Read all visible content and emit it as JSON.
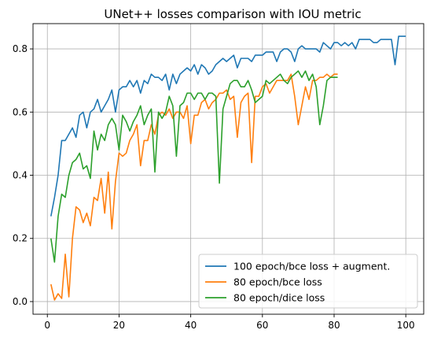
{
  "chart_data": {
    "type": "line",
    "title": "UNet++ losses comparison with IOU metric",
    "xlabel": "",
    "ylabel": "",
    "xlim": [
      -4,
      105
    ],
    "ylim": [
      -0.04,
      0.88
    ],
    "xticks": [
      0,
      20,
      40,
      60,
      80,
      100
    ],
    "yticks": [
      0.0,
      0.2,
      0.4,
      0.6,
      0.8
    ],
    "xtick_labels": [
      "0",
      "20",
      "40",
      "60",
      "80",
      "100"
    ],
    "ytick_labels": [
      "0.0",
      "0.2",
      "0.4",
      "0.6",
      "0.8"
    ],
    "grid": true,
    "legend_position": "lower right",
    "series": [
      {
        "name": "100 epoch/bce loss + augment.",
        "color": "#1f77b4",
        "x": [
          1,
          2,
          3,
          4,
          5,
          6,
          7,
          8,
          9,
          10,
          11,
          12,
          13,
          14,
          15,
          16,
          17,
          18,
          19,
          20,
          21,
          22,
          23,
          24,
          25,
          26,
          27,
          28,
          29,
          30,
          31,
          32,
          33,
          34,
          35,
          36,
          37,
          38,
          39,
          40,
          41,
          42,
          43,
          44,
          45,
          46,
          47,
          48,
          49,
          50,
          51,
          52,
          53,
          54,
          55,
          56,
          57,
          58,
          59,
          60,
          61,
          62,
          63,
          64,
          65,
          66,
          67,
          68,
          69,
          70,
          71,
          72,
          73,
          74,
          75,
          76,
          77,
          78,
          79,
          80,
          81,
          82,
          83,
          84,
          85,
          86,
          87,
          88,
          89,
          90,
          91,
          92,
          93,
          94,
          95,
          96,
          97,
          98,
          99,
          100
        ],
        "values": [
          0.27,
          0.33,
          0.4,
          0.51,
          0.51,
          0.53,
          0.55,
          0.52,
          0.59,
          0.6,
          0.55,
          0.6,
          0.61,
          0.64,
          0.6,
          0.62,
          0.64,
          0.67,
          0.6,
          0.67,
          0.68,
          0.68,
          0.7,
          0.68,
          0.7,
          0.66,
          0.7,
          0.69,
          0.72,
          0.71,
          0.71,
          0.7,
          0.72,
          0.67,
          0.72,
          0.69,
          0.72,
          0.73,
          0.74,
          0.73,
          0.75,
          0.72,
          0.75,
          0.74,
          0.72,
          0.73,
          0.75,
          0.76,
          0.77,
          0.76,
          0.77,
          0.78,
          0.74,
          0.77,
          0.77,
          0.77,
          0.76,
          0.78,
          0.78,
          0.78,
          0.79,
          0.79,
          0.79,
          0.76,
          0.79,
          0.8,
          0.8,
          0.79,
          0.76,
          0.8,
          0.81,
          0.8,
          0.8,
          0.8,
          0.8,
          0.79,
          0.82,
          0.81,
          0.8,
          0.82,
          0.82,
          0.81,
          0.82,
          0.81,
          0.82,
          0.8,
          0.83,
          0.83,
          0.83,
          0.83,
          0.82,
          0.82,
          0.83,
          0.83,
          0.83,
          0.83,
          0.75,
          0.84,
          0.84,
          0.84
        ]
      },
      {
        "name": "80 epoch/bce loss",
        "color": "#ff7f0e",
        "x": [
          1,
          2,
          3,
          4,
          5,
          6,
          7,
          8,
          9,
          10,
          11,
          12,
          13,
          14,
          15,
          16,
          17,
          18,
          19,
          20,
          21,
          22,
          23,
          24,
          25,
          26,
          27,
          28,
          29,
          30,
          31,
          32,
          33,
          34,
          35,
          36,
          37,
          38,
          39,
          40,
          41,
          42,
          43,
          44,
          45,
          46,
          47,
          48,
          49,
          50,
          51,
          52,
          53,
          54,
          55,
          56,
          57,
          58,
          59,
          60,
          61,
          62,
          63,
          64,
          65,
          66,
          67,
          68,
          69,
          70,
          71,
          72,
          73,
          74,
          75,
          76,
          77,
          78,
          79,
          80,
          81
        ],
        "values": [
          0.055,
          0.005,
          0.025,
          0.01,
          0.15,
          0.015,
          0.2,
          0.3,
          0.29,
          0.25,
          0.28,
          0.24,
          0.33,
          0.32,
          0.39,
          0.28,
          0.41,
          0.23,
          0.38,
          0.47,
          0.46,
          0.47,
          0.51,
          0.53,
          0.56,
          0.43,
          0.51,
          0.51,
          0.56,
          0.53,
          0.59,
          0.6,
          0.59,
          0.61,
          0.58,
          0.6,
          0.6,
          0.58,
          0.62,
          0.5,
          0.59,
          0.59,
          0.63,
          0.64,
          0.61,
          0.63,
          0.64,
          0.66,
          0.66,
          0.67,
          0.64,
          0.65,
          0.52,
          0.63,
          0.65,
          0.66,
          0.44,
          0.65,
          0.65,
          0.68,
          0.69,
          0.66,
          0.68,
          0.7,
          0.7,
          0.7,
          0.7,
          0.72,
          0.65,
          0.56,
          0.62,
          0.68,
          0.64,
          0.7,
          0.7,
          0.71,
          0.71,
          0.72,
          0.71,
          0.72,
          0.72
        ]
      },
      {
        "name": "80 epoch/dice loss",
        "color": "#2ca02c",
        "x": [
          1,
          2,
          3,
          4,
          5,
          6,
          7,
          8,
          9,
          10,
          11,
          12,
          13,
          14,
          15,
          16,
          17,
          18,
          19,
          20,
          21,
          22,
          23,
          24,
          25,
          26,
          27,
          28,
          29,
          30,
          31,
          32,
          33,
          34,
          35,
          36,
          37,
          38,
          39,
          40,
          41,
          42,
          43,
          44,
          45,
          46,
          47,
          48,
          49,
          50,
          51,
          52,
          53,
          54,
          55,
          56,
          57,
          58,
          59,
          60,
          61,
          62,
          63,
          64,
          65,
          66,
          67,
          68,
          69,
          70,
          71,
          72,
          73,
          74,
          75,
          76,
          77,
          78,
          79,
          80,
          81
        ],
        "values": [
          0.2,
          0.125,
          0.27,
          0.34,
          0.33,
          0.4,
          0.44,
          0.45,
          0.47,
          0.42,
          0.43,
          0.39,
          0.54,
          0.48,
          0.53,
          0.51,
          0.56,
          0.58,
          0.56,
          0.48,
          0.59,
          0.57,
          0.54,
          0.57,
          0.59,
          0.62,
          0.56,
          0.59,
          0.61,
          0.41,
          0.6,
          0.58,
          0.6,
          0.65,
          0.62,
          0.46,
          0.62,
          0.63,
          0.66,
          0.66,
          0.64,
          0.66,
          0.66,
          0.64,
          0.66,
          0.66,
          0.65,
          0.375,
          0.61,
          0.65,
          0.69,
          0.7,
          0.7,
          0.68,
          0.68,
          0.7,
          0.67,
          0.63,
          0.64,
          0.65,
          0.7,
          0.69,
          0.7,
          0.71,
          0.72,
          0.7,
          0.69,
          0.71,
          0.72,
          0.73,
          0.71,
          0.73,
          0.7,
          0.72,
          0.68,
          0.56,
          0.62,
          0.7,
          0.71,
          0.71,
          0.71
        ]
      }
    ]
  }
}
